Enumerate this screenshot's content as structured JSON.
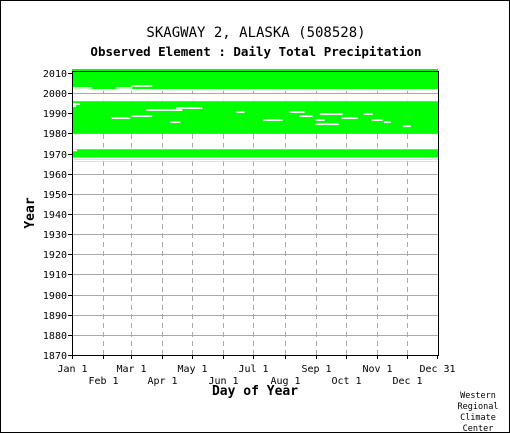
{
  "header": {
    "title": "SKAGWAY 2, ALASKA   (508528)",
    "subtitle": "Observed Element : Daily Total Precipitation"
  },
  "credit": {
    "line1": "Western",
    "line2": "Regional",
    "line3": "Climate",
    "line4": "Center"
  },
  "colors": {
    "data": "#00ff00",
    "axis": "#000000",
    "grid": "#aaaaaa"
  },
  "chart_data": {
    "type": "bar",
    "title": "SKAGWAY 2, ALASKA   (508528)",
    "subtitle": "Observed Element : Daily Total Precipitation",
    "xlabel": "Day of Year",
    "ylabel": "Year",
    "xlim": [
      1,
      366
    ],
    "ylim": [
      1870,
      2011
    ],
    "grid": true,
    "y_ticks": [
      1870,
      1880,
      1890,
      1900,
      1910,
      1920,
      1930,
      1940,
      1950,
      1960,
      1970,
      1980,
      1990,
      2000,
      2010
    ],
    "x_ticks_top": [
      {
        "label": "Jan 1",
        "day": 1
      },
      {
        "label": "Mar 1",
        "day": 60
      },
      {
        "label": "May 1",
        "day": 121
      },
      {
        "label": "Jul 1",
        "day": 182
      },
      {
        "label": "Sep 1",
        "day": 244
      },
      {
        "label": "Nov 1",
        "day": 305
      },
      {
        "label": "Dec 31",
        "day": 365
      }
    ],
    "x_ticks_bottom": [
      {
        "label": "Feb 1",
        "day": 32
      },
      {
        "label": "Apr 1",
        "day": 91
      },
      {
        "label": "Jun 1",
        "day": 152
      },
      {
        "label": "Aug 1",
        "day": 213
      },
      {
        "label": "Oct 1",
        "day": 274
      },
      {
        "label": "Dec 1",
        "day": 335
      }
    ],
    "observed_periods": [
      {
        "start_year": 1966,
        "start_day": 1,
        "end_year": 1972,
        "end_day": 365
      },
      {
        "start_year": 1980,
        "start_day": 1,
        "end_year": 1995,
        "end_day": 365
      },
      {
        "start_year": 2002,
        "start_day": 1,
        "end_year": 2011,
        "end_day": 365
      }
    ],
    "missing_segments": [
      {
        "year": 2001,
        "start_day": 1,
        "end_day": 365
      },
      {
        "year": 2002,
        "start_day": 1,
        "end_day": 20
      },
      {
        "year": 2002,
        "start_day": 45,
        "end_day": 60
      },
      {
        "year": 2003,
        "start_day": 60,
        "end_day": 80
      },
      {
        "year": 1998,
        "start_day": 1,
        "end_day": 365
      },
      {
        "year": 1997,
        "start_day": 1,
        "end_day": 365
      },
      {
        "year": 1996,
        "start_day": 1,
        "end_day": 365
      },
      {
        "year": 1994,
        "start_day": 1,
        "end_day": 8
      },
      {
        "year": 1993,
        "start_day": 1,
        "end_day": 4
      },
      {
        "year": 1992,
        "start_day": 105,
        "end_day": 130
      },
      {
        "year": 1991,
        "start_day": 75,
        "end_day": 110
      },
      {
        "year": 1990,
        "start_day": 165,
        "end_day": 172
      },
      {
        "year": 1990,
        "start_day": 218,
        "end_day": 232
      },
      {
        "year": 1989,
        "start_day": 248,
        "end_day": 270
      },
      {
        "year": 1989,
        "start_day": 292,
        "end_day": 300
      },
      {
        "year": 1988,
        "start_day": 60,
        "end_day": 80
      },
      {
        "year": 1988,
        "start_day": 228,
        "end_day": 240
      },
      {
        "year": 1987,
        "start_day": 40,
        "end_day": 58
      },
      {
        "year": 1987,
        "start_day": 270,
        "end_day": 285
      },
      {
        "year": 1986,
        "start_day": 192,
        "end_day": 210
      },
      {
        "year": 1986,
        "start_day": 244,
        "end_day": 252
      },
      {
        "year": 1986,
        "start_day": 300,
        "end_day": 310
      },
      {
        "year": 1985,
        "start_day": 99,
        "end_day": 108
      },
      {
        "year": 1985,
        "start_day": 312,
        "end_day": 318
      },
      {
        "year": 1984,
        "start_day": 244,
        "end_day": 266
      },
      {
        "year": 1983,
        "start_day": 331,
        "end_day": 338
      },
      {
        "year": 1972,
        "start_day": 1,
        "end_day": 365
      },
      {
        "year": 1971,
        "start_day": 1,
        "end_day": 5
      },
      {
        "year": 1967,
        "start_day": 1,
        "end_day": 365
      },
      {
        "year": 1966,
        "start_day": 1,
        "end_day": 365
      }
    ]
  }
}
